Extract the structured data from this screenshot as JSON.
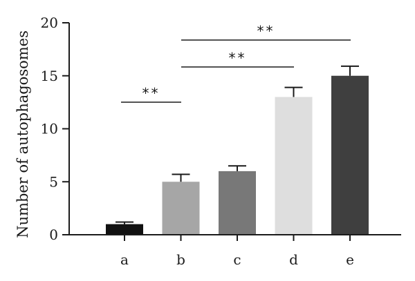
{
  "chart_data": {
    "type": "bar",
    "categories": [
      "a",
      "b",
      "c",
      "d",
      "e"
    ],
    "values": [
      1,
      5,
      6,
      13,
      15
    ],
    "errors": [
      0.2,
      0.7,
      0.5,
      0.9,
      0.9
    ],
    "colors": [
      "#111111",
      "#a6a6a6",
      "#787878",
      "#dedede",
      "#3f3f3f"
    ],
    "title": "",
    "xlabel": "",
    "ylabel": "Number of autophagosomes",
    "ylim": [
      0,
      20
    ],
    "yticks": [
      0,
      5,
      10,
      15,
      20
    ],
    "grid": false,
    "significance": [
      {
        "from": "a",
        "to": "b",
        "label": "**"
      },
      {
        "from": "b",
        "to": "d",
        "label": "**"
      },
      {
        "from": "b",
        "to": "e",
        "label": "**"
      }
    ]
  }
}
